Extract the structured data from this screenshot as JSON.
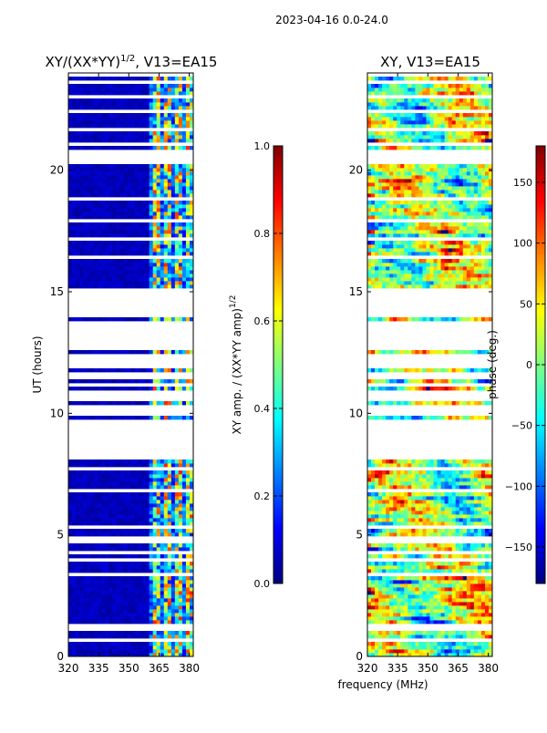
{
  "header": {
    "supertitle": "2023-04-16 0.0-24.0"
  },
  "chart_data": [
    {
      "type": "heatmap",
      "title_prefix": "XY/(XX*YY)",
      "title_superscript": "1/2",
      "title_suffix": ", V13=EA15",
      "xlabel": "",
      "ylabel": "UT (hours)",
      "xlim": [
        320,
        382
      ],
      "ylim": [
        0,
        24
      ],
      "xticks": [
        320,
        335,
        350,
        365,
        380
      ],
      "yticks": [
        0,
        5,
        10,
        15,
        20
      ],
      "colorbar": {
        "label_prefix": "XY amp. / (XX*YY amp)",
        "label_superscript": "1/2",
        "range": [
          0.0,
          1.0
        ],
        "ticks": [
          "0.0",
          "0.2",
          "0.4",
          "0.6",
          "0.8",
          "1.0"
        ],
        "colormap": "jet"
      },
      "bright_band_mhz": [
        361,
        382
      ],
      "masked_band_hours": [
        8.0,
        15.0
      ]
    },
    {
      "type": "heatmap",
      "title": "XY, V13=EA15",
      "xlabel": "frequency (MHz)",
      "ylabel": "",
      "xlim": [
        320,
        382
      ],
      "ylim": [
        0,
        24
      ],
      "xticks": [
        320,
        335,
        350,
        365,
        380
      ],
      "yticks": [
        0,
        5,
        10,
        15,
        20
      ],
      "colorbar": {
        "label": "phase (deg.)",
        "range": [
          -180,
          180
        ],
        "ticks": [
          "−150",
          "−100",
          "−50",
          "0",
          "50",
          "100",
          "150"
        ],
        "colormap": "jet"
      },
      "masked_band_hours": [
        8.0,
        15.0
      ]
    }
  ],
  "colors": {
    "jet": [
      "#00007f",
      "#0000ff",
      "#007fff",
      "#00ffff",
      "#7fff7f",
      "#ffff00",
      "#ff7f00",
      "#ff0000",
      "#7f0000"
    ],
    "axis": "#000000",
    "background": "#ffffff"
  }
}
